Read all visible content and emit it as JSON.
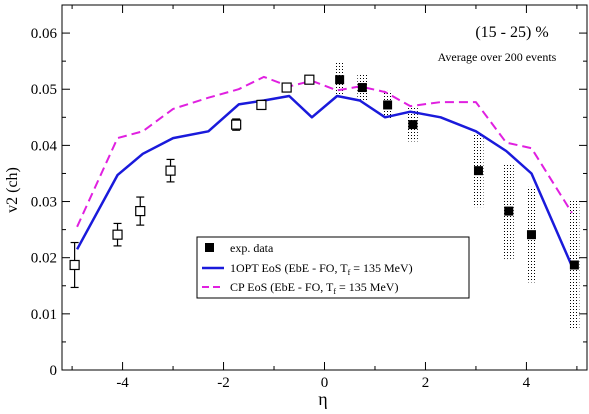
{
  "chart_data": {
    "type": "scatter",
    "title": "",
    "xlabel": "η",
    "ylabel": "v2 (ch)",
    "xlim": [
      -5.2,
      5.2
    ],
    "ylim": [
      0,
      0.065
    ],
    "x_ticks": [
      -4,
      -2,
      0,
      2,
      4
    ],
    "x_tick_labels": [
      "-4",
      "-2",
      "0",
      "2",
      "4"
    ],
    "y_ticks": [
      0,
      0.01,
      0.02,
      0.03,
      0.04,
      0.05,
      0.06
    ],
    "y_tick_labels": [
      "0",
      "0.01",
      "0.02",
      "0.03",
      "0.04",
      "0.05",
      "0.06"
    ],
    "grid": false,
    "annotations": {
      "centrality": "(15 - 25) %",
      "events": "Average over 200 events"
    },
    "legend": {
      "placement": "lower-center",
      "entries": [
        {
          "key": "exp",
          "label": "exp. data"
        },
        {
          "key": "opt",
          "label_main": "1OPT EoS (EbE - FO, T",
          "label_sub": "f",
          "label_tail": " = 135 MeV)"
        },
        {
          "key": "cp",
          "label_main": "CP EoS (EbE - FO, T",
          "label_sub": "f",
          "label_tail": " = 135 MeV)"
        }
      ]
    },
    "colors": {
      "opt": "#1a1adb",
      "cp": "#e020e0",
      "marker": "#000000"
    },
    "series": [
      {
        "name": "exp. data",
        "kind": "filled-squares",
        "x": [
          0.3,
          0.75,
          1.25,
          1.75,
          3.05,
          3.65,
          4.1,
          4.95
        ],
        "y": [
          0.0517,
          0.0503,
          0.0472,
          0.0437,
          0.0355,
          0.0283,
          0.0241,
          0.0187
        ],
        "sys_err": [
          0.003,
          0.0025,
          0.0025,
          0.003,
          0.0065,
          0.0085,
          0.0085,
          0.0115
        ]
      },
      {
        "name": "mirrored data",
        "kind": "open-squares",
        "x": [
          -4.95,
          -4.1,
          -3.65,
          -3.05,
          -1.75,
          -1.25,
          -0.75,
          -0.3
        ],
        "y": [
          0.0187,
          0.0241,
          0.0283,
          0.0355,
          0.0437,
          0.0472,
          0.0503,
          0.0517
        ],
        "err": [
          0.004,
          0.002,
          0.0025,
          0.002,
          0.001,
          0.0008,
          0.0007,
          0.0007
        ]
      },
      {
        "name": "1OPT EoS (EbE - FO, Tf = 135 MeV)",
        "kind": "line",
        "x": [
          -4.9,
          -4.1,
          -3.6,
          -3.0,
          -2.3,
          -1.7,
          -1.2,
          -0.7,
          -0.25,
          0.25,
          0.7,
          1.2,
          1.7,
          2.3,
          3.0,
          3.6,
          4.1,
          4.9
        ],
        "y": [
          0.0215,
          0.0347,
          0.0385,
          0.0413,
          0.0425,
          0.0473,
          0.048,
          0.0488,
          0.045,
          0.0488,
          0.048,
          0.045,
          0.046,
          0.045,
          0.0425,
          0.039,
          0.035,
          0.0185
        ]
      },
      {
        "name": "CP EoS (EbE - FO, Tf = 135 MeV)",
        "kind": "dashed-line",
        "x": [
          -4.9,
          -4.1,
          -3.6,
          -3.0,
          -2.3,
          -1.7,
          -1.2,
          -0.7,
          -0.25,
          0.25,
          0.7,
          1.2,
          1.7,
          2.3,
          3.0,
          3.6,
          4.1,
          4.9
        ],
        "y": [
          0.0255,
          0.0413,
          0.0425,
          0.0465,
          0.0485,
          0.05,
          0.0522,
          0.0505,
          0.0515,
          0.0498,
          0.0505,
          0.0495,
          0.047,
          0.0477,
          0.0477,
          0.0405,
          0.0395,
          0.028
        ]
      }
    ]
  }
}
